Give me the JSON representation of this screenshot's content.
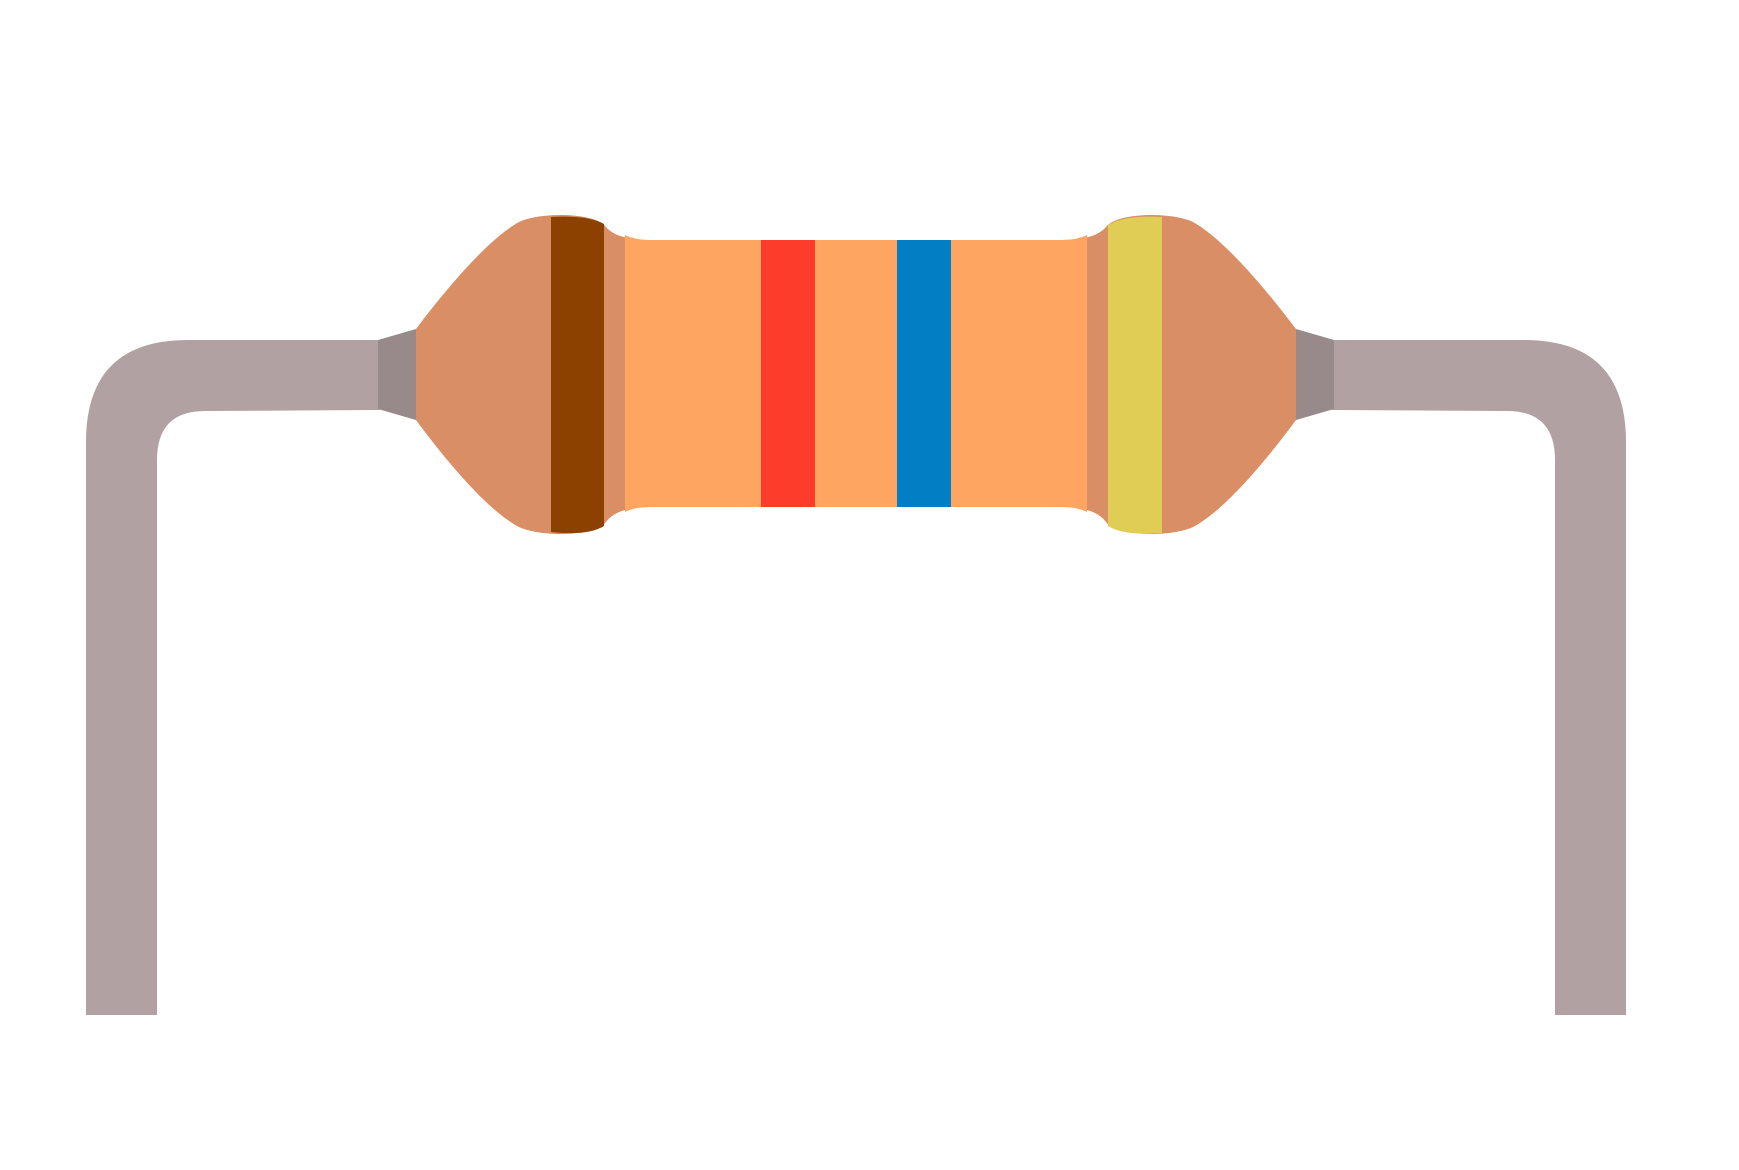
{
  "illustration": {
    "subject": "resistor-icon",
    "colors": {
      "background": "#ffffff",
      "lead_wire": "#b1a1a3",
      "lead_collar": "#988a8b",
      "body_cap": "#d98e65",
      "body_center": "#fea562"
    },
    "bands": [
      {
        "name": "band-1",
        "color_name": "brown",
        "color": "#8d4100"
      },
      {
        "name": "band-2",
        "color_name": "red",
        "color": "#fe3c2b"
      },
      {
        "name": "band-3",
        "color_name": "blue",
        "color": "#017ec4"
      },
      {
        "name": "band-tolerance",
        "color_name": "gold",
        "color": "#e0cd55"
      }
    ]
  }
}
